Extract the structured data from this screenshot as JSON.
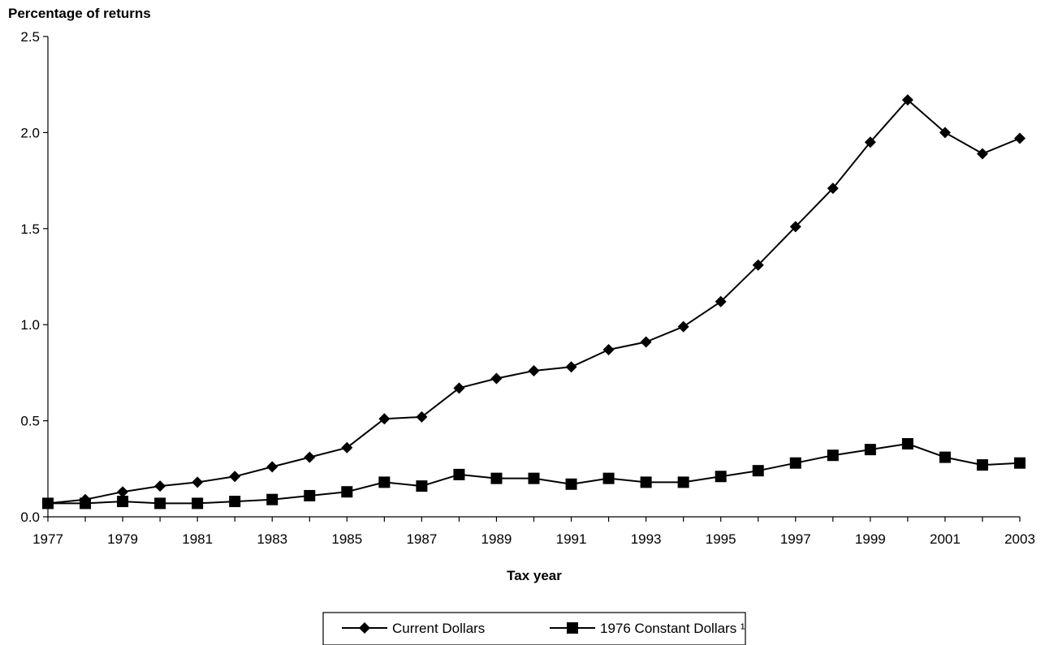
{
  "chart_data": {
    "type": "line",
    "ylabel": "Percentage of returns",
    "xlabel": "Tax year",
    "ylim": [
      0,
      2.5
    ],
    "yticks": [
      "0.0",
      "0.5",
      "1.0",
      "1.5",
      "2.0",
      "2.5"
    ],
    "xlim": [
      1977,
      2003
    ],
    "xticks": [
      "1977",
      "1979",
      "1981",
      "1983",
      "1985",
      "1987",
      "1989",
      "1991",
      "1993",
      "1995",
      "1997",
      "1999",
      "2001",
      "2003"
    ],
    "grid": false,
    "legend_position": "bottom",
    "x": [
      1977,
      1978,
      1979,
      1980,
      1981,
      1982,
      1983,
      1984,
      1985,
      1986,
      1987,
      1988,
      1989,
      1990,
      1991,
      1992,
      1993,
      1994,
      1995,
      1996,
      1997,
      1998,
      1999,
      2000,
      2001,
      2002,
      2003
    ],
    "series": [
      {
        "name": "Current Dollars",
        "marker": "diamond",
        "color": "#000000",
        "values": [
          0.07,
          0.09,
          0.13,
          0.16,
          0.18,
          0.21,
          0.26,
          0.31,
          0.36,
          0.51,
          0.52,
          0.67,
          0.72,
          0.76,
          0.78,
          0.87,
          0.91,
          0.99,
          1.12,
          1.31,
          1.51,
          1.71,
          1.95,
          2.17,
          2.0,
          1.89,
          1.97
        ]
      },
      {
        "name": "1976 Constant Dollars ¹",
        "marker": "square",
        "color": "#000000",
        "values": [
          0.07,
          0.07,
          0.08,
          0.07,
          0.07,
          0.08,
          0.09,
          0.11,
          0.13,
          0.18,
          0.16,
          0.22,
          0.2,
          0.2,
          0.17,
          0.2,
          0.18,
          0.18,
          0.21,
          0.24,
          0.28,
          0.32,
          0.35,
          0.38,
          0.31,
          0.27,
          0.28
        ]
      }
    ]
  }
}
